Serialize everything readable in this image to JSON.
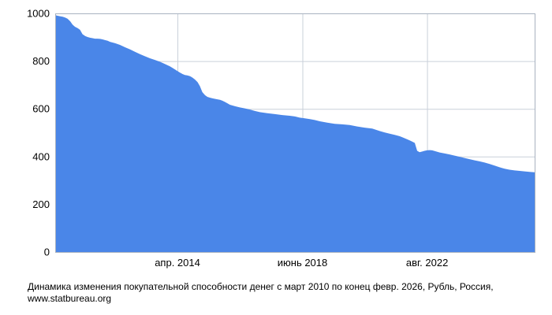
{
  "caption": {
    "line1": "Динамика изменения покупательной способности денег с март 2010 по конец февр. 2026, Рубль, Россия,",
    "line2": "www.statbureau.org"
  },
  "chart_data": {
    "type": "area",
    "title": "Динамика изменения покупательной способности денег",
    "period": "март 2010 — конец февр. 2026",
    "currency": "Рубль",
    "country": "Россия",
    "source": "www.statbureau.org",
    "xlabel": "",
    "ylabel": "",
    "x_range": [
      2010.17,
      2026.17
    ],
    "ylim": [
      0,
      1000
    ],
    "y_ticks": [
      0,
      200,
      400,
      600,
      800,
      1000
    ],
    "x_ticks": [
      {
        "x": 2014.25,
        "label": "апр. 2014"
      },
      {
        "x": 2018.42,
        "label": "июнь 2018"
      },
      {
        "x": 2022.58,
        "label": "авг. 2022"
      }
    ],
    "grid": true,
    "legend": false,
    "fill_color": "#4a86e8",
    "grid_color": "#c9d0da",
    "border_color": "#a8b2c0",
    "text_color": "#000000",
    "points": [
      [
        2010.17,
        993
      ],
      [
        2010.25,
        990
      ],
      [
        2010.33,
        988
      ],
      [
        2010.42,
        986
      ],
      [
        2010.5,
        983
      ],
      [
        2010.58,
        978
      ],
      [
        2010.67,
        967
      ],
      [
        2010.75,
        953
      ],
      [
        2010.83,
        944
      ],
      [
        2010.92,
        938
      ],
      [
        2011.0,
        931
      ],
      [
        2011.08,
        913
      ],
      [
        2011.17,
        905
      ],
      [
        2011.25,
        901
      ],
      [
        2011.33,
        898
      ],
      [
        2011.42,
        896
      ],
      [
        2011.5,
        894
      ],
      [
        2011.58,
        894
      ],
      [
        2011.67,
        893
      ],
      [
        2011.75,
        891
      ],
      [
        2011.83,
        888
      ],
      [
        2011.92,
        885
      ],
      [
        2012.0,
        881
      ],
      [
        2012.17,
        875
      ],
      [
        2012.33,
        868
      ],
      [
        2012.5,
        858
      ],
      [
        2012.67,
        849
      ],
      [
        2012.83,
        839
      ],
      [
        2013.0,
        829
      ],
      [
        2013.17,
        820
      ],
      [
        2013.33,
        812
      ],
      [
        2013.5,
        805
      ],
      [
        2013.67,
        797
      ],
      [
        2013.83,
        788
      ],
      [
        2014.0,
        778
      ],
      [
        2014.08,
        772
      ],
      [
        2014.17,
        765
      ],
      [
        2014.25,
        758
      ],
      [
        2014.33,
        752
      ],
      [
        2014.42,
        746
      ],
      [
        2014.5,
        742
      ],
      [
        2014.58,
        740
      ],
      [
        2014.67,
        737
      ],
      [
        2014.75,
        731
      ],
      [
        2014.83,
        723
      ],
      [
        2014.92,
        712
      ],
      [
        2015.0,
        695
      ],
      [
        2015.08,
        670
      ],
      [
        2015.17,
        657
      ],
      [
        2015.25,
        650
      ],
      [
        2015.33,
        647
      ],
      [
        2015.42,
        644
      ],
      [
        2015.5,
        642
      ],
      [
        2015.58,
        640
      ],
      [
        2015.67,
        638
      ],
      [
        2015.75,
        634
      ],
      [
        2015.83,
        629
      ],
      [
        2015.92,
        623
      ],
      [
        2016.0,
        617
      ],
      [
        2016.17,
        611
      ],
      [
        2016.33,
        606
      ],
      [
        2016.5,
        602
      ],
      [
        2016.67,
        597
      ],
      [
        2016.83,
        591
      ],
      [
        2017.0,
        586
      ],
      [
        2017.25,
        582
      ],
      [
        2017.5,
        578
      ],
      [
        2017.75,
        574
      ],
      [
        2018.0,
        571
      ],
      [
        2018.17,
        568
      ],
      [
        2018.33,
        563
      ],
      [
        2018.5,
        560
      ],
      [
        2018.67,
        557
      ],
      [
        2018.83,
        553
      ],
      [
        2019.0,
        548
      ],
      [
        2019.25,
        542
      ],
      [
        2019.5,
        537
      ],
      [
        2019.75,
        535
      ],
      [
        2020.0,
        532
      ],
      [
        2020.25,
        526
      ],
      [
        2020.5,
        521
      ],
      [
        2020.75,
        517
      ],
      [
        2021.0,
        507
      ],
      [
        2021.17,
        501
      ],
      [
        2021.33,
        496
      ],
      [
        2021.5,
        491
      ],
      [
        2021.67,
        485
      ],
      [
        2021.83,
        477
      ],
      [
        2022.0,
        468
      ],
      [
        2022.08,
        463
      ],
      [
        2022.17,
        457
      ],
      [
        2022.25,
        424
      ],
      [
        2022.33,
        418
      ],
      [
        2022.42,
        421
      ],
      [
        2022.5,
        424
      ],
      [
        2022.58,
        426
      ],
      [
        2022.67,
        427
      ],
      [
        2022.75,
        426
      ],
      [
        2022.83,
        423
      ],
      [
        2022.92,
        420
      ],
      [
        2023.0,
        417
      ],
      [
        2023.17,
        413
      ],
      [
        2023.33,
        409
      ],
      [
        2023.5,
        404
      ],
      [
        2023.67,
        399
      ],
      [
        2023.83,
        394
      ],
      [
        2024.0,
        389
      ],
      [
        2024.17,
        384
      ],
      [
        2024.33,
        380
      ],
      [
        2024.5,
        375
      ],
      [
        2024.67,
        369
      ],
      [
        2024.83,
        362
      ],
      [
        2025.0,
        355
      ],
      [
        2025.17,
        349
      ],
      [
        2025.33,
        345
      ],
      [
        2025.5,
        342
      ],
      [
        2025.67,
        340
      ],
      [
        2025.83,
        338
      ],
      [
        2026.0,
        336
      ],
      [
        2026.08,
        335
      ],
      [
        2026.17,
        334
      ]
    ]
  }
}
